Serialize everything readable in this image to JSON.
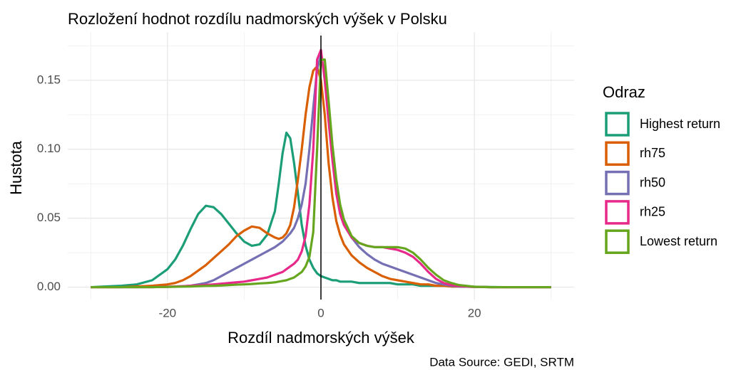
{
  "chart_data": {
    "type": "line",
    "title": "Rozložení hodnot rozdílu nadmorských výšek v Polsku",
    "x_label": "Rozdíl nadmorských výšek",
    "y_label": "Hustota",
    "caption": "Data Source: GEDI, SRTM",
    "legend_title": "Odraz",
    "legend_position": "right",
    "grid": true,
    "vline": 0,
    "xlim": [
      -33,
      33
    ],
    "ylim": [
      -0.009,
      0.185
    ],
    "xticks": [
      -20,
      0,
      20
    ],
    "xminor": [
      -30,
      -10,
      10,
      30
    ],
    "yticks": [
      {
        "value": 0,
        "label": "0.00"
      },
      {
        "value": 0.05,
        "label": "0.05"
      },
      {
        "value": 0.1,
        "label": "0.10"
      },
      {
        "value": 0.15,
        "label": "0.15"
      }
    ],
    "yminor": [
      0.025,
      0.075,
      0.125,
      0.175
    ],
    "x": [
      -30,
      -28,
      -26,
      -24,
      -22,
      -20,
      -19,
      -18,
      -17,
      -16,
      -15,
      -14,
      -13,
      -12,
      -11,
      -10,
      -9,
      -8,
      -7,
      -6,
      -5.5,
      -5,
      -4.5,
      -4,
      -3.5,
      -3,
      -2.5,
      -2,
      -1.5,
      -1,
      -0.5,
      0,
      0.5,
      1,
      1.5,
      2,
      2.5,
      3,
      4,
      5,
      6,
      7,
      8,
      9,
      10,
      11,
      12,
      13,
      14,
      15,
      16,
      17,
      18,
      20,
      22,
      24,
      26,
      28,
      30
    ],
    "series": [
      {
        "name": "Highest return",
        "color": "#1b9e77",
        "values": [
          0,
          0.0005,
          0.001,
          0.002,
          0.005,
          0.013,
          0.02,
          0.03,
          0.042,
          0.053,
          0.059,
          0.058,
          0.053,
          0.046,
          0.039,
          0.033,
          0.03,
          0.031,
          0.038,
          0.055,
          0.075,
          0.097,
          0.112,
          0.108,
          0.09,
          0.068,
          0.045,
          0.03,
          0.02,
          0.014,
          0.01,
          0.008,
          0.007,
          0.006,
          0.005,
          0.005,
          0.004,
          0.004,
          0.004,
          0.003,
          0.003,
          0.003,
          0.003,
          0.003,
          0.002,
          0.002,
          0.002,
          0.001,
          0.001,
          0.001,
          0.001,
          0.0005,
          0.0005,
          0.0003,
          0.0001,
          0,
          0,
          0,
          0
        ]
      },
      {
        "name": "rh75",
        "color": "#d95f02",
        "values": [
          0,
          0,
          0,
          0.0005,
          0.001,
          0.002,
          0.003,
          0.005,
          0.008,
          0.012,
          0.016,
          0.021,
          0.026,
          0.031,
          0.037,
          0.041,
          0.044,
          0.043,
          0.039,
          0.036,
          0.035,
          0.036,
          0.039,
          0.045,
          0.058,
          0.078,
          0.1,
          0.125,
          0.145,
          0.157,
          0.16,
          0.15,
          0.125,
          0.09,
          0.065,
          0.048,
          0.038,
          0.031,
          0.023,
          0.018,
          0.014,
          0.011,
          0.008,
          0.006,
          0.005,
          0.004,
          0.003,
          0.002,
          0.002,
          0.001,
          0.001,
          0.0005,
          0.0005,
          0.0002,
          0,
          0,
          0,
          0,
          0
        ]
      },
      {
        "name": "rh50",
        "color": "#7570b3",
        "values": [
          0,
          0,
          0,
          0,
          0,
          0.0002,
          0.0004,
          0.0006,
          0.001,
          0.002,
          0.003,
          0.005,
          0.008,
          0.011,
          0.014,
          0.017,
          0.02,
          0.023,
          0.026,
          0.029,
          0.031,
          0.033,
          0.036,
          0.039,
          0.043,
          0.05,
          0.06,
          0.075,
          0.1,
          0.13,
          0.158,
          0.168,
          0.155,
          0.125,
          0.095,
          0.07,
          0.055,
          0.046,
          0.036,
          0.029,
          0.024,
          0.02,
          0.017,
          0.015,
          0.013,
          0.011,
          0.009,
          0.007,
          0.005,
          0.003,
          0.002,
          0.001,
          0.0005,
          0.0002,
          0,
          0,
          0,
          0,
          0
        ]
      },
      {
        "name": "rh25",
        "color": "#e7298a",
        "values": [
          0,
          0,
          0,
          0,
          0,
          0.0003,
          0.0005,
          0.0007,
          0.001,
          0.0013,
          0.0016,
          0.002,
          0.0025,
          0.003,
          0.0035,
          0.004,
          0.005,
          0.006,
          0.007,
          0.009,
          0.01,
          0.011,
          0.013,
          0.015,
          0.017,
          0.02,
          0.026,
          0.037,
          0.06,
          0.1,
          0.165,
          0.172,
          0.15,
          0.12,
          0.092,
          0.068,
          0.053,
          0.045,
          0.036,
          0.032,
          0.03,
          0.029,
          0.029,
          0.028,
          0.027,
          0.025,
          0.022,
          0.017,
          0.011,
          0.006,
          0.003,
          0.0015,
          0.0008,
          0.0002,
          0,
          0,
          0,
          0,
          0
        ]
      },
      {
        "name": "Lowest return",
        "color": "#66a61e",
        "values": [
          0,
          0,
          0,
          0,
          0,
          0.0002,
          0.0003,
          0.0004,
          0.0005,
          0.0007,
          0.0009,
          0.001,
          0.0012,
          0.0015,
          0.0018,
          0.002,
          0.0023,
          0.0027,
          0.003,
          0.0035,
          0.004,
          0.0045,
          0.005,
          0.006,
          0.007,
          0.009,
          0.011,
          0.015,
          0.022,
          0.04,
          0.1,
          0.165,
          0.165,
          0.135,
          0.103,
          0.078,
          0.06,
          0.049,
          0.037,
          0.032,
          0.03,
          0.029,
          0.029,
          0.029,
          0.029,
          0.028,
          0.025,
          0.02,
          0.014,
          0.009,
          0.005,
          0.003,
          0.0015,
          0.0003,
          0,
          0,
          0,
          0,
          0
        ]
      }
    ]
  }
}
